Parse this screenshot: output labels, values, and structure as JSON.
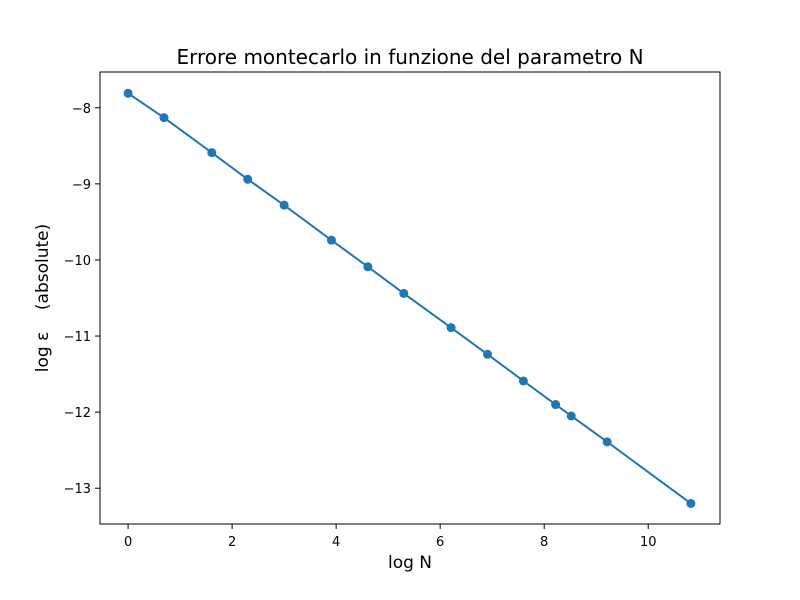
{
  "chart_data": {
    "type": "line",
    "title": "Errore montecarlo in funzione del parametro N",
    "xlabel": "log N",
    "ylabel": "log ε    (absolute)",
    "xlim": [
      -0.54,
      11.38
    ],
    "ylim": [
      -13.47,
      -7.53
    ],
    "xticks": [
      0,
      2,
      4,
      6,
      8,
      10
    ],
    "xtick_labels": [
      "0",
      "2",
      "4",
      "6",
      "8",
      "10"
    ],
    "yticks": [
      -8,
      -9,
      -10,
      -11,
      -12,
      -13
    ],
    "ytick_labels": [
      "−8",
      "−9",
      "−10",
      "−11",
      "−12",
      "−13"
    ],
    "grid": false,
    "series": [
      {
        "color": "#1f77b4",
        "marker": "circle",
        "x": [
          0,
          0.69,
          1.61,
          2.3,
          3.0,
          3.91,
          4.61,
          5.3,
          6.21,
          6.91,
          7.6,
          8.22,
          8.52,
          9.21,
          10.82
        ],
        "y": [
          -7.81,
          -8.13,
          -8.59,
          -8.94,
          -9.28,
          -9.74,
          -10.09,
          -10.44,
          -10.89,
          -11.24,
          -11.59,
          -11.9,
          -12.05,
          -12.39,
          -13.2
        ]
      }
    ]
  }
}
